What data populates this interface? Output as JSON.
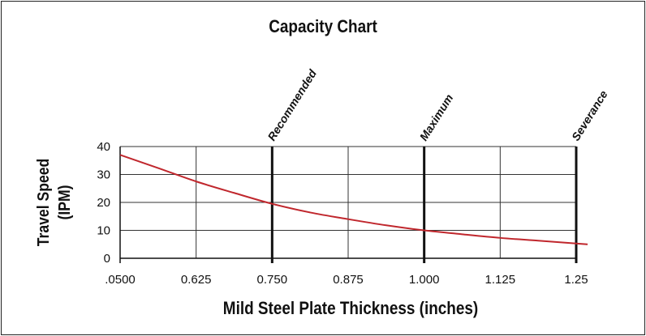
{
  "chart_data": {
    "type": "line",
    "title": "Capacity Chart",
    "xlabel": "Mild Steel Plate Thickness (inches)",
    "ylabel_lines": [
      "Travel Speed",
      "(IPM)"
    ],
    "x_ticks": [
      ".0500",
      "0.625",
      "0.750",
      "0.875",
      "1.000",
      "1.125",
      "1.25"
    ],
    "y_ticks": [
      "0",
      "10",
      "20",
      "30",
      "40"
    ],
    "ylim": [
      0,
      40
    ],
    "x_positions": [
      0,
      1,
      2,
      3,
      4,
      5,
      6
    ],
    "xlim": [
      0,
      6
    ],
    "grid": true,
    "markers": [
      {
        "label": "Recommended",
        "x": 2
      },
      {
        "label": "Maximum",
        "x": 4
      },
      {
        "label": "Severance",
        "x": 6
      }
    ],
    "series": [
      {
        "color": "#c0272d",
        "points": [
          {
            "x": 0,
            "y": 37
          },
          {
            "x": 0.5,
            "y": 32.3
          },
          {
            "x": 1,
            "y": 27.5
          },
          {
            "x": 1.5,
            "y": 23.4
          },
          {
            "x": 2,
            "y": 19.5
          },
          {
            "x": 2.5,
            "y": 16.4
          },
          {
            "x": 3,
            "y": 14
          },
          {
            "x": 3.5,
            "y": 11.8
          },
          {
            "x": 4,
            "y": 10
          },
          {
            "x": 4.5,
            "y": 8.6
          },
          {
            "x": 5,
            "y": 7.3
          },
          {
            "x": 5.5,
            "y": 6.3
          },
          {
            "x": 6,
            "y": 5.3
          },
          {
            "x": 6.15,
            "y": 5
          }
        ]
      }
    ]
  }
}
